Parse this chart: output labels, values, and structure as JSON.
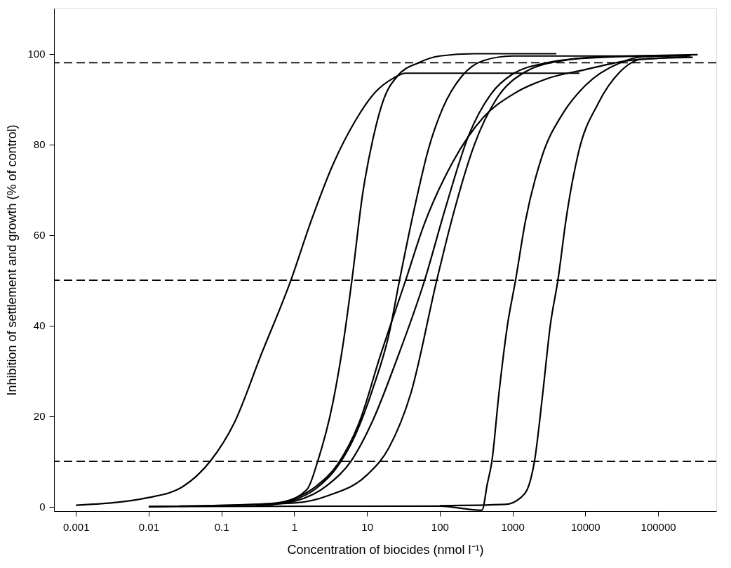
{
  "chart_data": {
    "type": "line",
    "xlabel": "Concentration of biocides (nmol l⁻¹)",
    "ylabel": "Inhibition of settlement and growth (% of control)",
    "log": "x",
    "xlim": [
      0.0005,
      630000
    ],
    "xticks": [
      0.001,
      0.01,
      0.1,
      1,
      10,
      100,
      1000,
      10000,
      100000
    ],
    "ylim": [
      -1,
      110
    ],
    "yticks": [
      0,
      20,
      40,
      60,
      80,
      100
    ],
    "grid": false,
    "marker": "none",
    "line_style": "solid",
    "series": [
      {
        "color": "#000000",
        "x": [
          0.001,
          0.01,
          0.03,
          0.07,
          0.15,
          0.35,
          0.9,
          1.7,
          3.4,
          6.8,
          13,
          23,
          34,
          8300
        ],
        "values": [
          0.3,
          2,
          4.5,
          10,
          18.5,
          33.5,
          50,
          63,
          75.5,
          85,
          91.5,
          94.6,
          95.7,
          95.7
        ]
      },
      {
        "color": "#000000",
        "x": [
          0.01,
          0.3,
          0.7,
          1.5,
          2.1,
          3.4,
          4.6,
          6.2,
          8.7,
          12,
          17,
          26,
          51,
          100,
          300,
          4000
        ],
        "values": [
          0,
          0.5,
          1,
          3.8,
          10,
          23,
          35,
          50,
          69,
          81,
          90,
          95,
          98,
          99.5,
          100,
          100
        ]
      },
      {
        "color": "#000000",
        "x": [
          0.4,
          1,
          2,
          4,
          7,
          12,
          20,
          28,
          45,
          70,
          110,
          200,
          400,
          1000,
          280000
        ],
        "values": [
          0.4,
          1.5,
          4,
          9,
          16,
          26,
          38,
          50,
          66,
          79,
          88,
          95,
          98.5,
          99.5,
          99.5
        ]
      },
      {
        "color": "#000000",
        "x": [
          0.5,
          1,
          2,
          4,
          8,
          15,
          34,
          60,
          150,
          400,
          1000,
          3000,
          10000,
          40000,
          100000,
          250000
        ],
        "values": [
          0.5,
          1.8,
          4.5,
          9.5,
          19,
          33,
          50,
          62,
          76,
          86,
          91,
          94.5,
          96.5,
          98.5,
          99,
          99.3
        ]
      },
      {
        "color": "#000000",
        "x": [
          0.3,
          1,
          3,
          6,
          12,
          25,
          62,
          120,
          250,
          500,
          1000,
          3000,
          10000,
          350000
        ],
        "values": [
          0.2,
          1.2,
          5,
          10,
          19,
          32,
          50,
          66,
          82,
          91,
          95.5,
          98,
          99,
          99.8
        ]
      },
      {
        "color": "#000000",
        "x": [
          0.01,
          1,
          3,
          10,
          20,
          40,
          91,
          150,
          300,
          600,
          1500,
          5000,
          20000,
          200000
        ],
        "values": [
          0,
          0.8,
          2.5,
          7,
          13,
          25,
          50,
          64,
          80,
          90,
          96,
          98.5,
          99.4,
          99.6
        ]
      },
      {
        "color": "#000000",
        "x": [
          0.01,
          100,
          380,
          450,
          520,
          650,
          850,
          1100,
          1500,
          2500,
          5000,
          10000,
          30000,
          60000,
          150000
        ],
        "values": [
          0,
          0.1,
          -0.8,
          5,
          10,
          25,
          40,
          50,
          63,
          77,
          87,
          93,
          98,
          99.3,
          99.5
        ]
      },
      {
        "color": "#000000",
        "x": [
          100,
          800,
          1300,
          1700,
          2000,
          2600,
          3300,
          4200,
          5500,
          8000,
          15000,
          30000,
          60000,
          300000
        ],
        "values": [
          0.2,
          0.5,
          2,
          5,
          10,
          25,
          40,
          50,
          64,
          78,
          89,
          96,
          98.8,
          99.2
        ]
      }
    ],
    "ref_lines": [
      {
        "axis": "y",
        "value": 10,
        "color": "#000000",
        "line_style": "dashed"
      },
      {
        "axis": "y",
        "value": 50,
        "color": "#000000",
        "line_style": "dashed"
      },
      {
        "axis": "y",
        "value": 98,
        "color": "#000000",
        "line_style": "dashed"
      }
    ]
  }
}
